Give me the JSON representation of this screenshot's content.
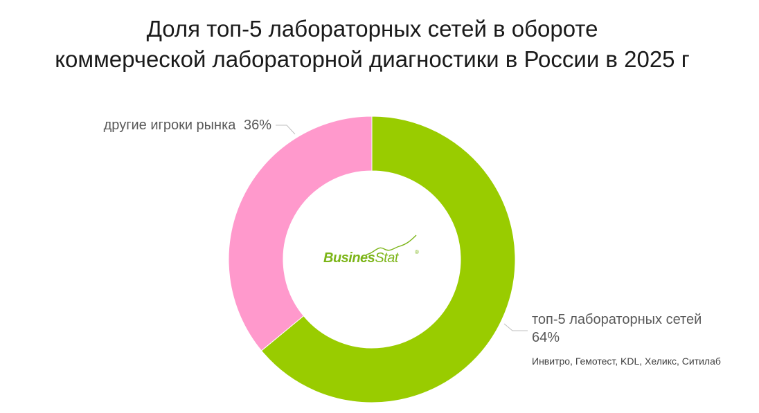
{
  "chart_data": {
    "type": "pie",
    "donut": true,
    "title_lines": [
      "Доля топ-5 лабораторных сетей в обороте",
      "коммерческой лабораторной диагностики в России в 2025 г"
    ],
    "slices": [
      {
        "name": "топ-5 лабораторных сетей",
        "value": 64,
        "value_label": "64%",
        "note": "Инвитро, Гемотест, KDL, Хеликс, Ситилаб",
        "color": "#99cc00"
      },
      {
        "name": "другие игроки рынка",
        "value": 36,
        "value_label": "36%",
        "color": "#ff99cc"
      }
    ],
    "start_angle_deg": 0,
    "direction": "clockwise"
  },
  "logo": {
    "text_bold": "Busines",
    "text_thin": "Stat",
    "mark": "®",
    "color": "#7cb518"
  }
}
